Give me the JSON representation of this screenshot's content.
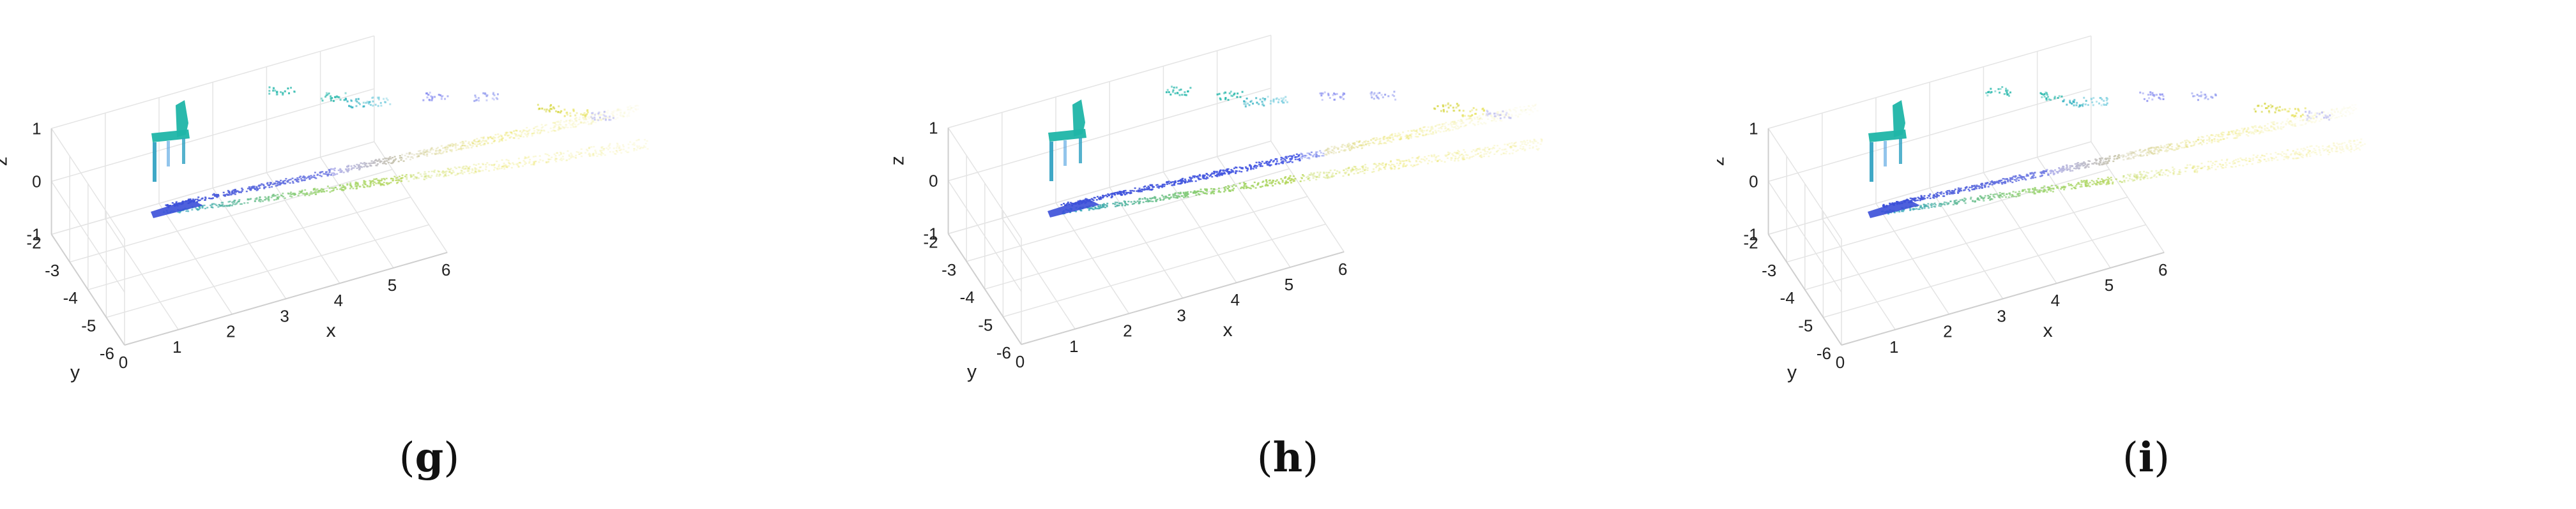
{
  "chart_data": [
    {
      "type": "scatter",
      "projection": "3d",
      "panel": "g",
      "xlabel": "x",
      "ylabel": "y",
      "zlabel": "z",
      "xlim": [
        0,
        6
      ],
      "ylim": [
        -6,
        -2
      ],
      "zlim": [
        -1,
        1
      ],
      "x_ticks": [
        "0",
        "1",
        "2",
        "3",
        "4",
        "5",
        "6"
      ],
      "y_ticks": [
        "-2",
        "-3",
        "-4",
        "-5",
        "-6"
      ],
      "z_ticks": [
        "1",
        "0",
        "-1"
      ],
      "grid": true,
      "colormap": "parula",
      "wedge": {
        "upper": [
          [
            0.4,
            -2.2,
            -1.05
          ],
          [
            6,
            -2.7,
            0.3
          ]
        ],
        "lower": [
          [
            0.4,
            -2.3,
            -1.2
          ],
          [
            6,
            -4.6,
            -0.3
          ]
        ]
      },
      "chair": {
        "x": 0.3,
        "y": -2.2,
        "z": [
          -1.2,
          0.1
        ]
      }
    },
    {
      "type": "scatter",
      "projection": "3d",
      "panel": "h",
      "xlabel": "x",
      "ylabel": "y",
      "zlabel": "z",
      "xlim": [
        0,
        6
      ],
      "ylim": [
        -6,
        -2
      ],
      "zlim": [
        -1,
        1
      ],
      "x_ticks": [
        "0",
        "1",
        "2",
        "3",
        "4",
        "5",
        "6"
      ],
      "y_ticks": [
        "-2",
        "-3",
        "-4",
        "-5",
        "-6"
      ],
      "z_ticks": [
        "1",
        "0",
        "-1"
      ],
      "grid": true,
      "colormap": "parula",
      "wedge": {
        "upper": [
          [
            0.4,
            -2.2,
            -1.05
          ],
          [
            6,
            -2.7,
            0.3
          ]
        ],
        "lower": [
          [
            0.4,
            -2.3,
            -1.2
          ],
          [
            6,
            -4.6,
            -0.3
          ]
        ]
      },
      "chair": {
        "x": 0.3,
        "y": -2.2,
        "z": [
          -1.2,
          0.1
        ]
      }
    },
    {
      "type": "scatter",
      "projection": "3d",
      "panel": "i",
      "xlabel": "x",
      "ylabel": "y",
      "zlabel": "z",
      "xlim": [
        0,
        6
      ],
      "ylim": [
        -6,
        -2
      ],
      "zlim": [
        -1,
        1
      ],
      "x_ticks": [
        "0",
        "1",
        "2",
        "3",
        "4",
        "5",
        "6"
      ],
      "y_ticks": [
        "-2",
        "-3",
        "-4",
        "-5",
        "-6"
      ],
      "z_ticks": [
        "1",
        "0",
        "-1"
      ],
      "grid": true,
      "colormap": "parula",
      "wedge": {
        "upper": [
          [
            0.4,
            -2.2,
            -1.05
          ],
          [
            6,
            -2.7,
            0.3
          ]
        ],
        "lower": [
          [
            0.4,
            -2.3,
            -1.2
          ],
          [
            6,
            -4.6,
            -0.3
          ]
        ]
      },
      "chair": {
        "x": 0.3,
        "y": -2.2,
        "z": [
          -1.2,
          0.1
        ]
      }
    }
  ],
  "captions": [
    "g",
    "h",
    "i"
  ],
  "caption_open": "(",
  "caption_close": ")",
  "colors": {
    "cyan": "#1fb5a8",
    "blue": "#3b4fd8",
    "yellow": "#e8e04a",
    "lavender": "#b3b3ee",
    "green": "#8fd06a",
    "grid": "#e4e4e4",
    "axis": "#cfcfcf"
  }
}
